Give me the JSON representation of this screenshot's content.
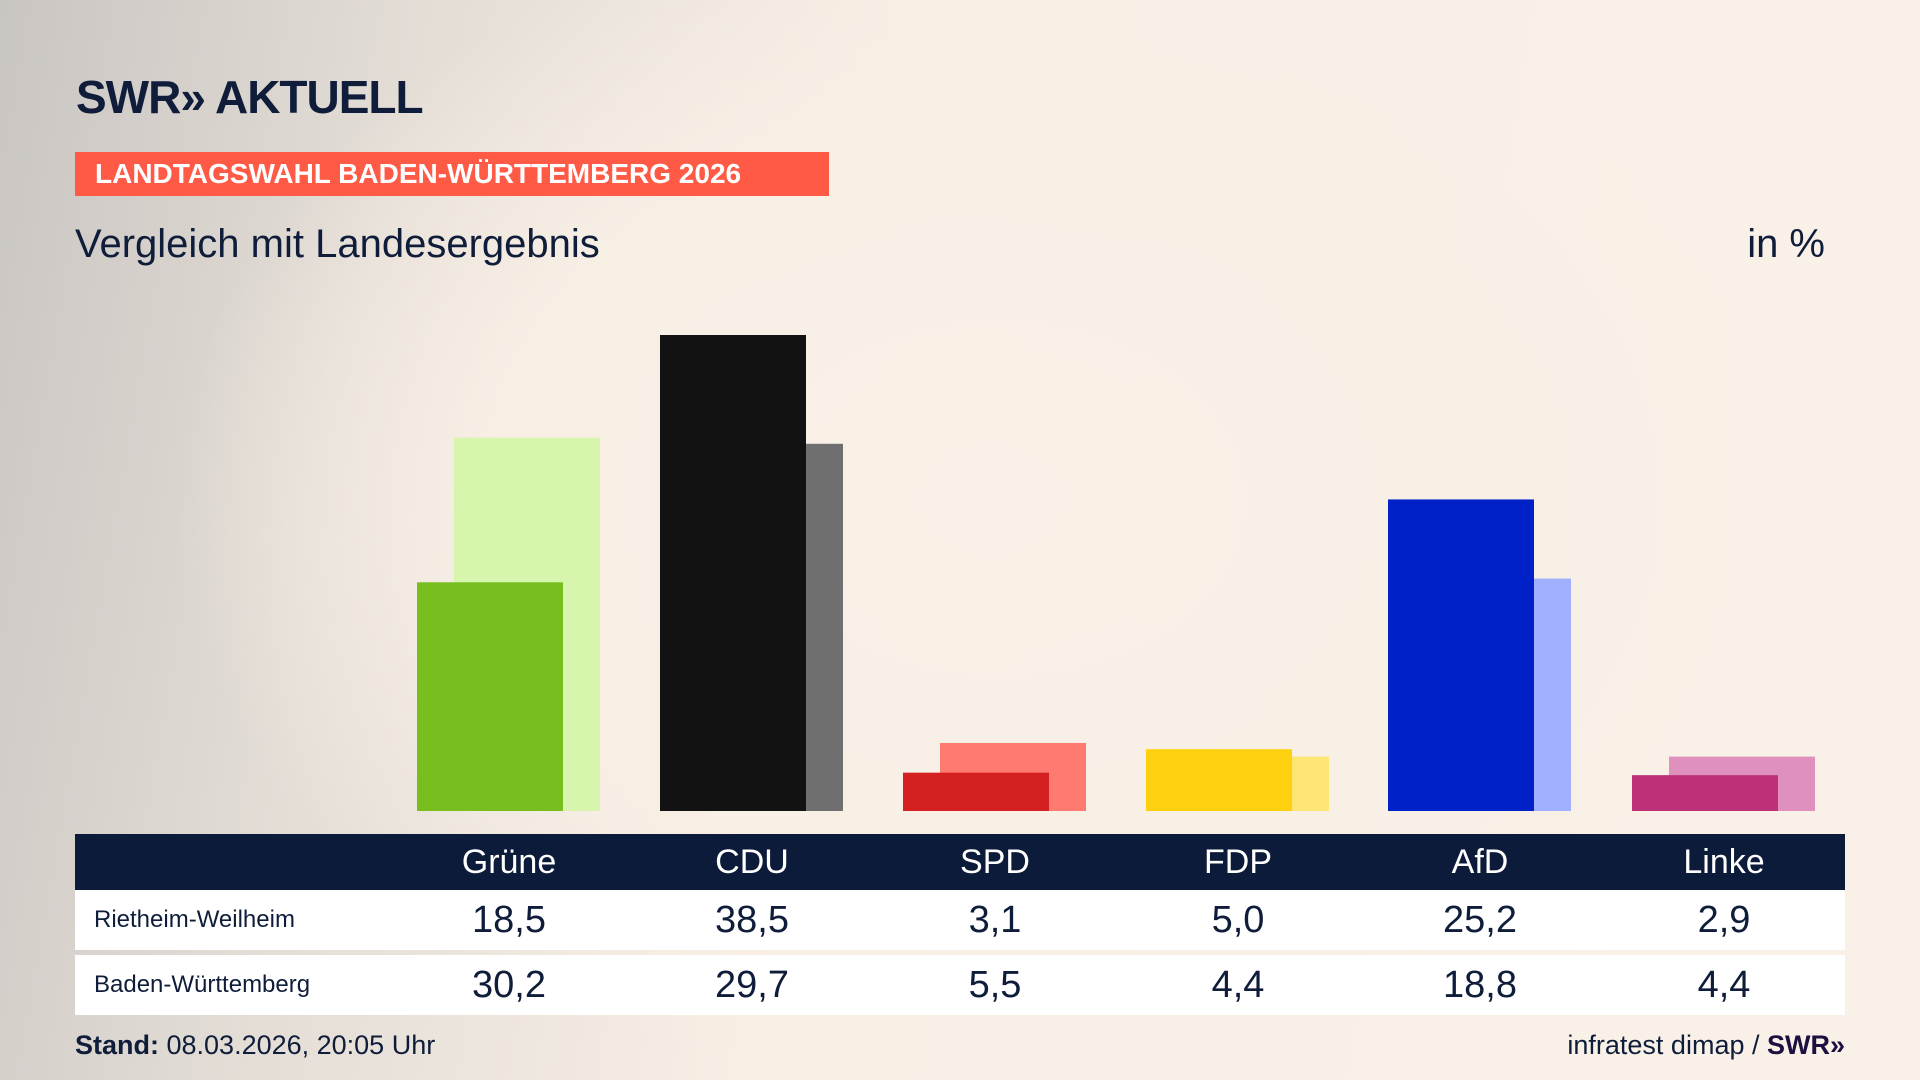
{
  "header": {
    "logo": "SWR» AKTUELL",
    "banner": "LANDTAGSWAHL BADEN-WÜRTTEMBERG 2026",
    "subtitle": "Vergleich mit Landesergebnis",
    "unit": "in %"
  },
  "chart_data": {
    "type": "bar",
    "categories": [
      "Grüne",
      "CDU",
      "SPD",
      "FDP",
      "AfD",
      "Linke"
    ],
    "series": [
      {
        "name": "Rietheim-Weilheim",
        "values": [
          18.5,
          38.5,
          3.1,
          5.0,
          25.2,
          2.9
        ],
        "colors": [
          "#78be1e",
          "#121212",
          "#d42020",
          "#ffd00f",
          "#0020c8",
          "#be3078"
        ]
      },
      {
        "name": "Baden-Württemberg",
        "values": [
          30.2,
          29.7,
          5.5,
          4.4,
          18.8,
          4.4
        ],
        "colors": [
          "#d8f5ae",
          "#6f6f6f",
          "#ff7a70",
          "#ffe574",
          "#a0b0ff",
          "#e090bd"
        ]
      }
    ],
    "ylim": [
      0,
      38.5
    ],
    "grid": false
  },
  "table": {
    "rows": [
      {
        "label": "Rietheim-Weilheim",
        "values": [
          "18,5",
          "38,5",
          "3,1",
          "5,0",
          "25,2",
          "2,9"
        ]
      },
      {
        "label": "Baden-Württemberg",
        "values": [
          "30,2",
          "29,7",
          "5,5",
          "4,4",
          "18,8",
          "4,4"
        ]
      }
    ]
  },
  "footer": {
    "stand_label": "Stand:",
    "stand_value": " 08.03.2026, 20:05 Uhr",
    "source": "infratest dimap / ",
    "source_logo": "SWR»"
  }
}
